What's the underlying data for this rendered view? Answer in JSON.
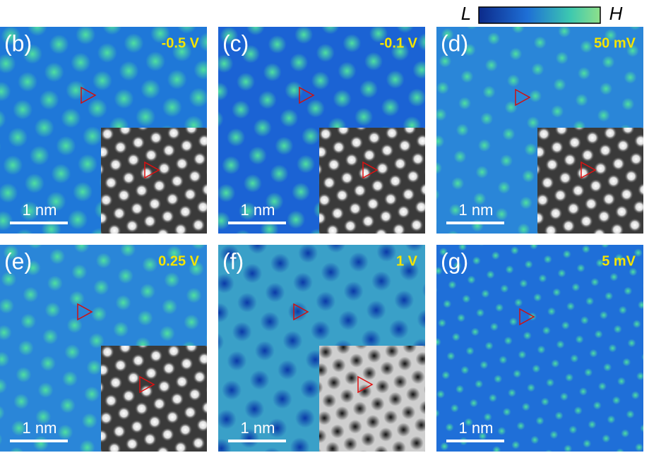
{
  "colorbar": {
    "low": "L",
    "high": "H"
  },
  "panels": [
    {
      "label": "(b)",
      "bias": "-0.5 V",
      "scale_bar": "1 nm"
    },
    {
      "label": "(c)",
      "bias": "-0.1 V",
      "scale_bar": "1 nm"
    },
    {
      "label": "(d)",
      "bias": "50 mV",
      "scale_bar": "1 nm"
    },
    {
      "label": "(e)",
      "bias": "0.25 V",
      "scale_bar": "1 nm"
    },
    {
      "label": "(f)",
      "bias": "1 V",
      "scale_bar": "1 nm"
    },
    {
      "label": "(g)",
      "bias": "5 mV",
      "scale_bar": "1 nm"
    }
  ]
}
